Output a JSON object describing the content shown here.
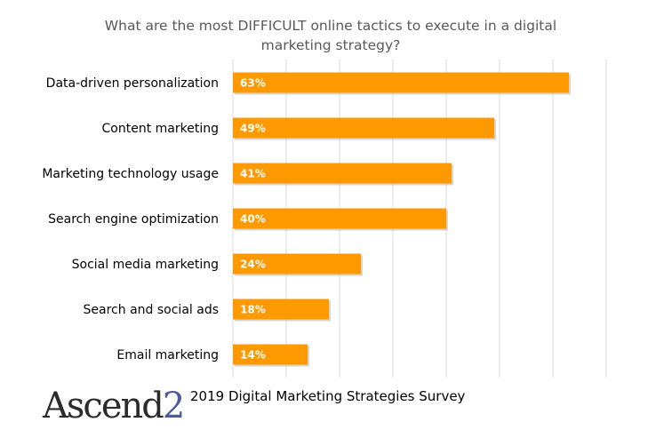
{
  "chart_data": {
    "type": "bar",
    "orientation": "horizontal",
    "title": [
      "What are the most DIFFICULT online tactics to execute in a digital",
      "marketing strategy?"
    ],
    "categories": [
      "Data-driven personalization",
      "Content marketing",
      "Marketing technology usage",
      "Search engine optimization",
      "Social media marketing",
      "Search and social ads",
      "Email marketing"
    ],
    "values": [
      63,
      49,
      41,
      40,
      24,
      18,
      14
    ],
    "data_labels": [
      "63%",
      "49%",
      "41%",
      "40%",
      "24%",
      "18%",
      "14%"
    ],
    "xlim": [
      0,
      70
    ],
    "grid": true,
    "bar_color": "#FF9900",
    "grid_color": "#D9D9D9"
  },
  "footer": {
    "logo_text": "Ascend",
    "logo_number": "2",
    "logo_number_color": "#4B5A9A",
    "survey": "2019 Digital Marketing Strategies Survey"
  }
}
